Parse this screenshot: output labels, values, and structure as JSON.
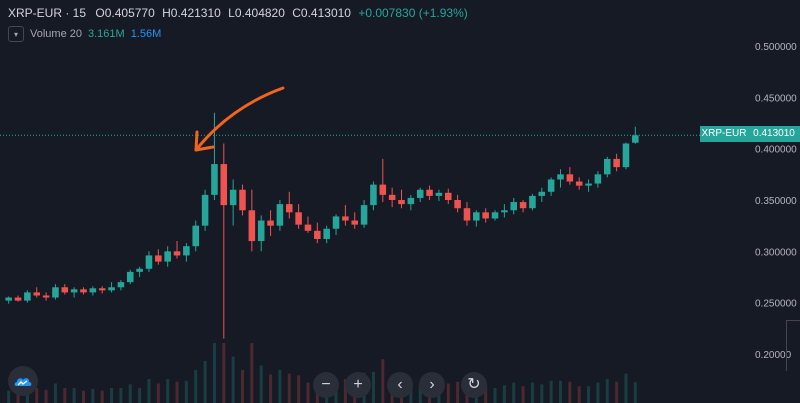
{
  "header": {
    "symbol": "XRP-EUR · 15",
    "open": "O0.405770",
    "high": "H0.421310",
    "low": "L0.404820",
    "close": "C0.413010",
    "change": "+0.007830 (+1.93%)"
  },
  "volume": {
    "label": "Volume 20",
    "v1": "3.161M",
    "v2": "1.56M"
  },
  "price_tag": {
    "symbol": "XRP-EUR",
    "value": "0.413010"
  },
  "controls": {
    "zoom_out": "−",
    "zoom_in": "+",
    "back": "‹",
    "forward": "›",
    "reset": "↻"
  },
  "colors": {
    "bg": "#161a25",
    "up": "#26a69a",
    "down": "#ef5350",
    "arrow": "#f0641e",
    "axis": "#b2b5be"
  },
  "chart_data": {
    "type": "candlestick",
    "ylim": [
      0.18,
      0.52
    ],
    "yticks": [
      0.5,
      0.45,
      0.4,
      0.35,
      0.3,
      0.25,
      0.2
    ],
    "ytick_labels": [
      "0.500000",
      "0.450000",
      "0.400000",
      "0.350000",
      "0.300000",
      "0.250000",
      "0.20000"
    ],
    "last_price": 0.41301,
    "candles": [
      [
        0.252,
        0.256,
        0.249,
        0.255
      ],
      [
        0.255,
        0.257,
        0.251,
        0.252
      ],
      [
        0.252,
        0.262,
        0.25,
        0.26
      ],
      [
        0.26,
        0.265,
        0.255,
        0.257
      ],
      [
        0.257,
        0.26,
        0.252,
        0.255
      ],
      [
        0.255,
        0.268,
        0.253,
        0.265
      ],
      [
        0.265,
        0.268,
        0.258,
        0.26
      ],
      [
        0.26,
        0.265,
        0.255,
        0.263
      ],
      [
        0.263,
        0.265,
        0.258,
        0.26
      ],
      [
        0.26,
        0.266,
        0.257,
        0.264
      ],
      [
        0.264,
        0.266,
        0.259,
        0.262
      ],
      [
        0.262,
        0.27,
        0.26,
        0.265
      ],
      [
        0.265,
        0.272,
        0.262,
        0.27
      ],
      [
        0.27,
        0.282,
        0.268,
        0.28
      ],
      [
        0.28,
        0.285,
        0.275,
        0.283
      ],
      [
        0.283,
        0.3,
        0.28,
        0.296
      ],
      [
        0.296,
        0.302,
        0.287,
        0.29
      ],
      [
        0.29,
        0.305,
        0.285,
        0.3
      ],
      [
        0.3,
        0.31,
        0.293,
        0.296
      ],
      [
        0.296,
        0.308,
        0.29,
        0.305
      ],
      [
        0.305,
        0.33,
        0.3,
        0.325
      ],
      [
        0.325,
        0.36,
        0.32,
        0.355
      ],
      [
        0.355,
        0.435,
        0.35,
        0.385
      ],
      [
        0.385,
        0.405,
        0.215,
        0.345
      ],
      [
        0.345,
        0.37,
        0.325,
        0.36
      ],
      [
        0.36,
        0.365,
        0.335,
        0.34
      ],
      [
        0.34,
        0.36,
        0.3,
        0.31
      ],
      [
        0.31,
        0.335,
        0.3,
        0.33
      ],
      [
        0.33,
        0.34,
        0.315,
        0.325
      ],
      [
        0.325,
        0.35,
        0.32,
        0.346
      ],
      [
        0.346,
        0.358,
        0.332,
        0.338
      ],
      [
        0.338,
        0.346,
        0.322,
        0.326
      ],
      [
        0.326,
        0.334,
        0.318,
        0.32
      ],
      [
        0.32,
        0.328,
        0.308,
        0.312
      ],
      [
        0.312,
        0.325,
        0.308,
        0.322
      ],
      [
        0.322,
        0.336,
        0.316,
        0.334
      ],
      [
        0.334,
        0.345,
        0.325,
        0.33
      ],
      [
        0.33,
        0.338,
        0.322,
        0.326
      ],
      [
        0.326,
        0.35,
        0.323,
        0.345
      ],
      [
        0.345,
        0.368,
        0.34,
        0.365
      ],
      [
        0.365,
        0.39,
        0.348,
        0.355
      ],
      [
        0.355,
        0.362,
        0.343,
        0.35
      ],
      [
        0.35,
        0.36,
        0.342,
        0.346
      ],
      [
        0.346,
        0.355,
        0.34,
        0.352
      ],
      [
        0.352,
        0.362,
        0.348,
        0.36
      ],
      [
        0.36,
        0.364,
        0.35,
        0.354
      ],
      [
        0.354,
        0.36,
        0.349,
        0.357
      ],
      [
        0.357,
        0.361,
        0.346,
        0.35
      ],
      [
        0.35,
        0.355,
        0.338,
        0.342
      ],
      [
        0.342,
        0.348,
        0.325,
        0.33
      ],
      [
        0.33,
        0.34,
        0.324,
        0.338
      ],
      [
        0.338,
        0.342,
        0.328,
        0.332
      ],
      [
        0.332,
        0.34,
        0.33,
        0.338
      ],
      [
        0.338,
        0.346,
        0.333,
        0.34
      ],
      [
        0.34,
        0.352,
        0.336,
        0.348
      ],
      [
        0.348,
        0.35,
        0.338,
        0.342
      ],
      [
        0.342,
        0.356,
        0.34,
        0.354
      ],
      [
        0.354,
        0.362,
        0.348,
        0.358
      ],
      [
        0.358,
        0.372,
        0.354,
        0.37
      ],
      [
        0.37,
        0.38,
        0.362,
        0.375
      ],
      [
        0.375,
        0.382,
        0.365,
        0.368
      ],
      [
        0.368,
        0.372,
        0.36,
        0.364
      ],
      [
        0.364,
        0.37,
        0.358,
        0.366
      ],
      [
        0.366,
        0.378,
        0.362,
        0.375
      ],
      [
        0.375,
        0.392,
        0.372,
        0.39
      ],
      [
        0.39,
        0.395,
        0.378,
        0.382
      ],
      [
        0.382,
        0.406,
        0.38,
        0.405
      ],
      [
        0.40577,
        0.42131,
        0.40482,
        0.41301
      ]
    ]
  }
}
